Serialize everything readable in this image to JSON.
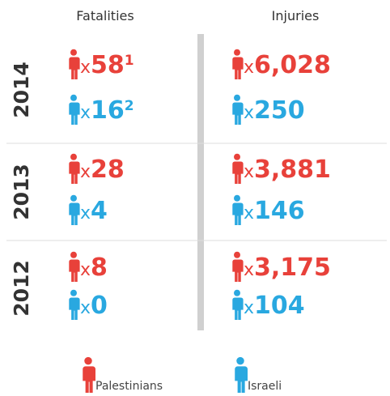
{
  "headers": {
    "fatalities": "Fatalities",
    "injuries": "Injuries"
  },
  "multiplier": "x",
  "rows": [
    {
      "year": "2014",
      "fatalities": [
        {
          "value": "58",
          "note": "1"
        },
        {
          "value": "16",
          "note": "2"
        }
      ],
      "injuries": [
        "6,028",
        "250"
      ]
    },
    {
      "year": "2013",
      "fatalities": [
        {
          "value": "28"
        },
        {
          "value": "4"
        }
      ],
      "injuries": [
        "3,881",
        "146"
      ]
    },
    {
      "year": "2012",
      "fatalities": [
        {
          "value": "8"
        },
        {
          "value": "0"
        }
      ],
      "injuries": [
        "3,175",
        "104"
      ]
    }
  ],
  "legend": [
    "Palestinians",
    "Israeli"
  ]
}
